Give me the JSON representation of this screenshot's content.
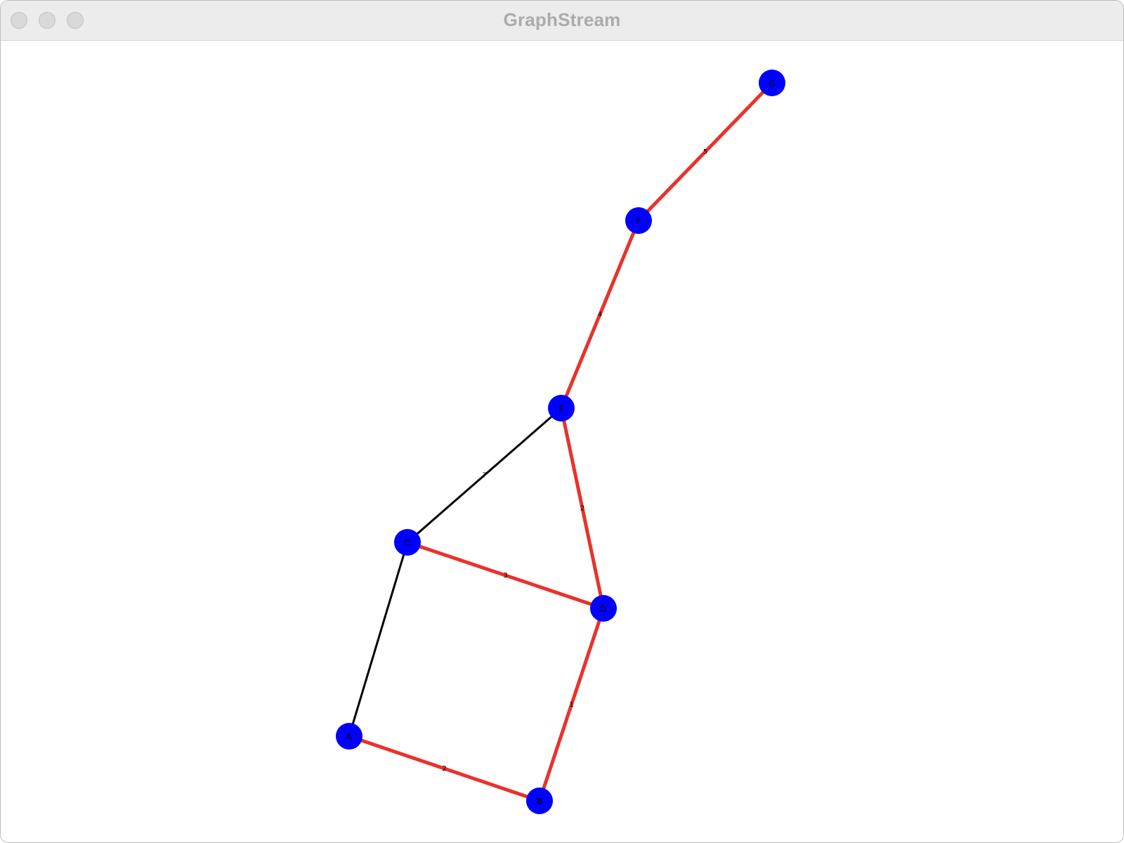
{
  "window": {
    "title": "GraphStream"
  },
  "graph": {
    "node_color": "#0000ff",
    "highlight_edge_color": "#e8332a",
    "default_edge_color": "#000000",
    "nodes": [
      {
        "id": "G",
        "label": "G"
      },
      {
        "id": "F",
        "label": "F"
      },
      {
        "id": "E",
        "label": "E"
      },
      {
        "id": "C",
        "label": "C"
      },
      {
        "id": "D",
        "label": "D"
      },
      {
        "id": "A",
        "label": "A"
      },
      {
        "id": "B",
        "label": "B"
      }
    ],
    "edges": [
      {
        "from": "G",
        "to": "F",
        "weight": "5",
        "highlighted": true
      },
      {
        "from": "F",
        "to": "E",
        "weight": "4",
        "highlighted": true
      },
      {
        "from": "E",
        "to": "C",
        "weight": "7",
        "highlighted": false
      },
      {
        "from": "E",
        "to": "D",
        "weight": "2",
        "highlighted": true
      },
      {
        "from": "C",
        "to": "D",
        "weight": "3",
        "highlighted": true
      },
      {
        "from": "C",
        "to": "A",
        "weight": "",
        "highlighted": false
      },
      {
        "from": "D",
        "to": "B",
        "weight": "1",
        "highlighted": true
      },
      {
        "from": "A",
        "to": "B",
        "weight": "2",
        "highlighted": true
      }
    ]
  }
}
